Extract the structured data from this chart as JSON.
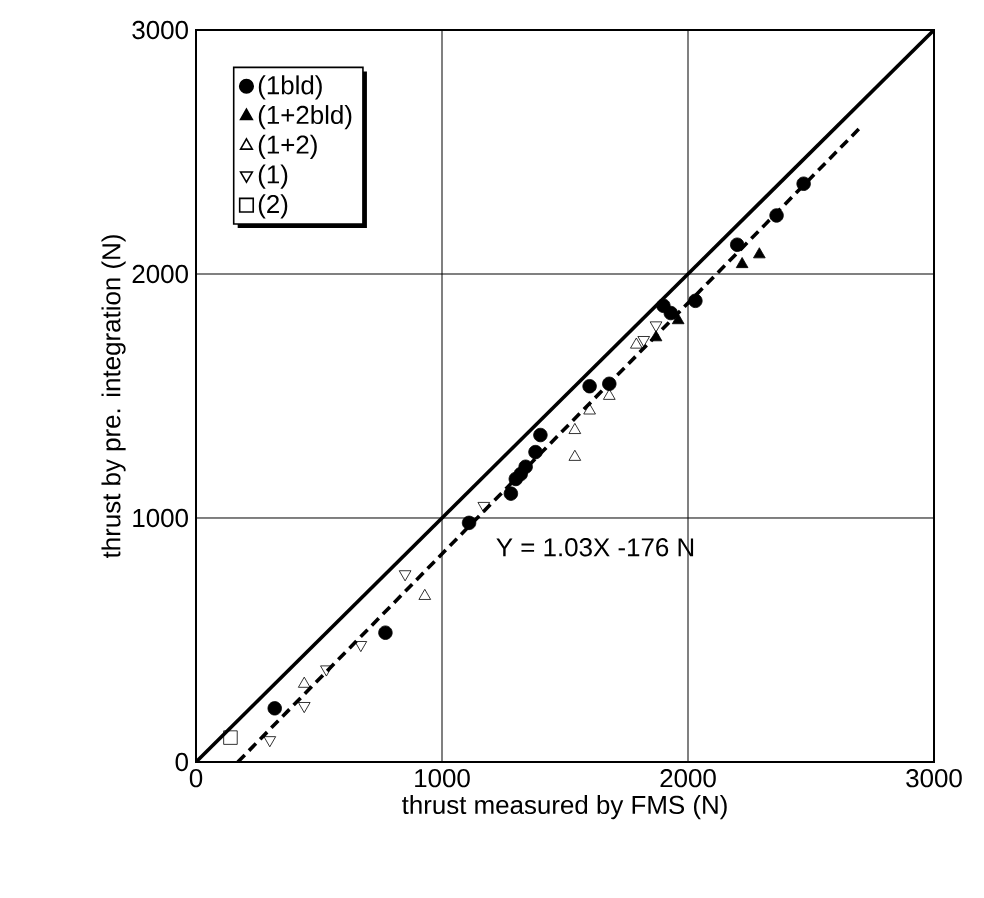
{
  "chart_data": {
    "type": "scatter",
    "xlabel": "thrust measured by FMS (N)",
    "ylabel": "thrust by pre. integration (N)",
    "xlim": [
      0,
      3000
    ],
    "ylim": [
      0,
      3000
    ],
    "xticks": [
      0,
      1000,
      2000,
      3000
    ],
    "yticks": [
      0,
      1000,
      2000,
      3000
    ],
    "grid": true,
    "legend": "top left",
    "annotations": [
      "Y = 1.03X -176 N"
    ],
    "series": [
      {
        "name": "(1bld)",
        "color": "#000000",
        "marker": "circle",
        "x": [
          320,
          770,
          1110,
          1280,
          1300,
          1340,
          1380,
          1400,
          1320,
          1600,
          1680,
          1900,
          1930,
          2030,
          2200,
          2360,
          2470
        ],
        "values": [
          220,
          530,
          980,
          1100,
          1160,
          1210,
          1270,
          1340,
          1180,
          1540,
          1550,
          1870,
          1840,
          1890,
          2120,
          2240,
          2370
        ]
      },
      {
        "name": "(1+2bld)",
        "color": "#000000",
        "marker": "triangle",
        "x": [
          1870,
          1960,
          2220,
          2290
        ],
        "values": [
          1740,
          1810,
          2040,
          2080
        ]
      },
      {
        "name": "(1+2)",
        "color": "#000000",
        "marker": "triangle_open",
        "x": [
          440,
          930,
          1540,
          1540,
          1600,
          1680,
          1790
        ],
        "values": [
          320,
          680,
          1250,
          1360,
          1440,
          1500,
          1710
        ]
      },
      {
        "name": "(1)",
        "color": "#000000",
        "marker": "triangle_down_open",
        "x": [
          300,
          440,
          530,
          670,
          850,
          1170,
          1820,
          1870
        ],
        "values": [
          90,
          230,
          380,
          480,
          770,
          1050,
          1730,
          1790
        ]
      },
      {
        "name": "(2)",
        "color": "#000000",
        "marker": "square_open",
        "x": [
          140
        ],
        "values": [
          100
        ]
      },
      {
        "type": "line",
        "color": "#000000",
        "line_style": "solid",
        "x": [
          0,
          3000
        ],
        "values": [
          0,
          3000
        ]
      },
      {
        "type": "line",
        "color": "#000000",
        "line_style": "dashed",
        "x": [
          170,
          2700
        ],
        "values": [
          0,
          2600
        ]
      }
    ]
  }
}
